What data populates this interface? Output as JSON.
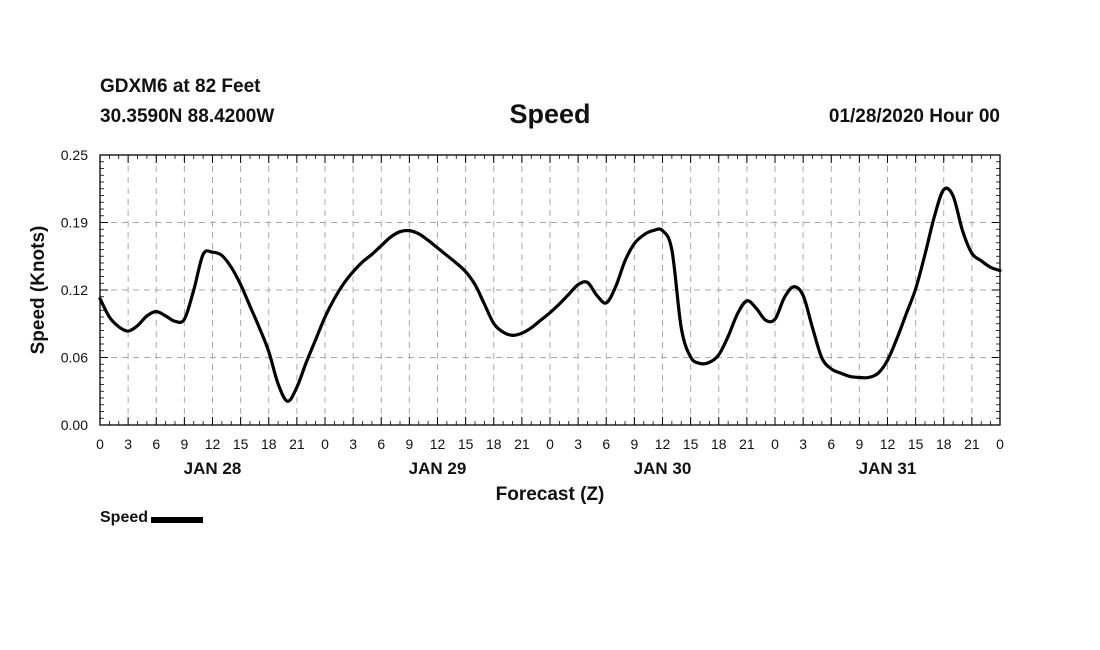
{
  "header": {
    "station": "GDXM6 at 82 Feet",
    "coords": "30.3590N 88.4200W",
    "title": "Speed",
    "issued": "01/28/2020 Hour 00"
  },
  "chart_data": {
    "type": "line",
    "title": "Speed",
    "xlabel": "Forecast (Z)",
    "ylabel": "Speed (Knots)",
    "ylim": [
      0,
      0.25
    ],
    "xlim": [
      0,
      96
    ],
    "yticks": [
      "0.00",
      "0.06",
      "0.12",
      "0.19",
      "0.25"
    ],
    "ytick_values": [
      0,
      0.0625,
      0.125,
      0.1875,
      0.25
    ],
    "xtick_hours": [
      0,
      3,
      6,
      9,
      12,
      15,
      18,
      21,
      24,
      27,
      30,
      33,
      36,
      39,
      42,
      45,
      48,
      51,
      54,
      57,
      60,
      63,
      66,
      69,
      72,
      75,
      78,
      81,
      84,
      87,
      90,
      93,
      96
    ],
    "xtick_labels": [
      "0",
      "3",
      "6",
      "9",
      "12",
      "15",
      "18",
      "21",
      "0",
      "3",
      "6",
      "9",
      "12",
      "15",
      "18",
      "21",
      "0",
      "3",
      "6",
      "9",
      "12",
      "15",
      "18",
      "21",
      "0",
      "3",
      "6",
      "9",
      "12",
      "15",
      "18",
      "21",
      "0"
    ],
    "day_labels": [
      {
        "hour": 12,
        "label": "JAN 28"
      },
      {
        "hour": 36,
        "label": "JAN 29"
      },
      {
        "hour": 60,
        "label": "JAN 30"
      },
      {
        "hour": 84,
        "label": "JAN 31"
      }
    ],
    "grid": true,
    "legend_position": "bottom-left",
    "series": [
      {
        "name": "Speed",
        "color": "#000000",
        "x": [
          0,
          1,
          2,
          3,
          4,
          5,
          6,
          7,
          8,
          9,
          10,
          11,
          12,
          13,
          14,
          15,
          16,
          17,
          18,
          19,
          20,
          21,
          22,
          23,
          24,
          25,
          26,
          27,
          28,
          29,
          30,
          31,
          32,
          33,
          34,
          35,
          36,
          37,
          38,
          39,
          40,
          41,
          42,
          43,
          44,
          45,
          46,
          47,
          48,
          49,
          50,
          51,
          52,
          53,
          54,
          55,
          56,
          57,
          58,
          59,
          60,
          61,
          62,
          63,
          64,
          65,
          66,
          67,
          68,
          69,
          70,
          71,
          72,
          73,
          74,
          75,
          76,
          77,
          78,
          79,
          80,
          81,
          82,
          83,
          84,
          85,
          86,
          87,
          88,
          89,
          90,
          91,
          92,
          93,
          94,
          95,
          96
        ],
        "values": [
          0.117,
          0.1,
          0.091,
          0.087,
          0.092,
          0.101,
          0.105,
          0.101,
          0.096,
          0.098,
          0.125,
          0.158,
          0.16,
          0.157,
          0.146,
          0.13,
          0.11,
          0.09,
          0.068,
          0.038,
          0.022,
          0.035,
          0.058,
          0.079,
          0.1,
          0.117,
          0.131,
          0.142,
          0.151,
          0.158,
          0.166,
          0.174,
          0.179,
          0.18,
          0.177,
          0.171,
          0.164,
          0.157,
          0.15,
          0.142,
          0.13,
          0.112,
          0.094,
          0.086,
          0.083,
          0.085,
          0.09,
          0.097,
          0.104,
          0.112,
          0.121,
          0.13,
          0.132,
          0.12,
          0.113,
          0.128,
          0.152,
          0.168,
          0.176,
          0.18,
          0.18,
          0.162,
          0.09,
          0.063,
          0.057,
          0.058,
          0.065,
          0.082,
          0.103,
          0.115,
          0.108,
          0.097,
          0.098,
          0.118,
          0.128,
          0.12,
          0.09,
          0.062,
          0.052,
          0.048,
          0.045,
          0.044,
          0.044,
          0.048,
          0.06,
          0.08,
          0.103,
          0.126,
          0.158,
          0.193,
          0.218,
          0.212,
          0.18,
          0.159,
          0.152,
          0.146,
          0.143
        ]
      }
    ]
  }
}
